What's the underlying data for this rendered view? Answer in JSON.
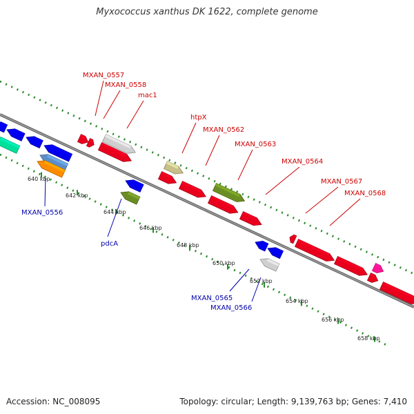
{
  "title": "Myxococcus xanthus DK 1622, complete genome",
  "accession": "Accession: NC_008095",
  "topology": "Topology: circular; Length: 9,139,763 bp; Genes: 7,410",
  "colors": {
    "forward_label": "#cc0000",
    "reverse_label": "#0000aa",
    "backbone": "#777777",
    "scale_dots": "#2a8a2a"
  },
  "tick_labels": [
    {
      "text": "640 kbp"
    },
    {
      "text": "642 kbp"
    },
    {
      "text": "644 kbp"
    },
    {
      "text": "646 kbp"
    },
    {
      "text": "648 kbp"
    },
    {
      "text": "650 kbp"
    },
    {
      "text": "652 kbp"
    },
    {
      "text": "654 kbp"
    },
    {
      "text": "656 kbp"
    },
    {
      "text": "658 kbp"
    }
  ],
  "gene_labels": [
    {
      "text": "MXAN_0557",
      "strand": "forward"
    },
    {
      "text": "MXAN_0558",
      "strand": "forward"
    },
    {
      "text": "mac1",
      "strand": "forward"
    },
    {
      "text": "htpX",
      "strand": "forward"
    },
    {
      "text": "MXAN_0562",
      "strand": "forward"
    },
    {
      "text": "MXAN_0563",
      "strand": "forward"
    },
    {
      "text": "MXAN_0564",
      "strand": "forward"
    },
    {
      "text": "MXAN_0567",
      "strand": "forward"
    },
    {
      "text": "MXAN_0568",
      "strand": "forward"
    },
    {
      "text": "MXAN_0556",
      "strand": "reverse"
    },
    {
      "text": "pdcA",
      "strand": "reverse"
    },
    {
      "text": "MXAN_0565",
      "strand": "reverse"
    },
    {
      "text": "MXAN_0566",
      "strand": "reverse"
    }
  ]
}
